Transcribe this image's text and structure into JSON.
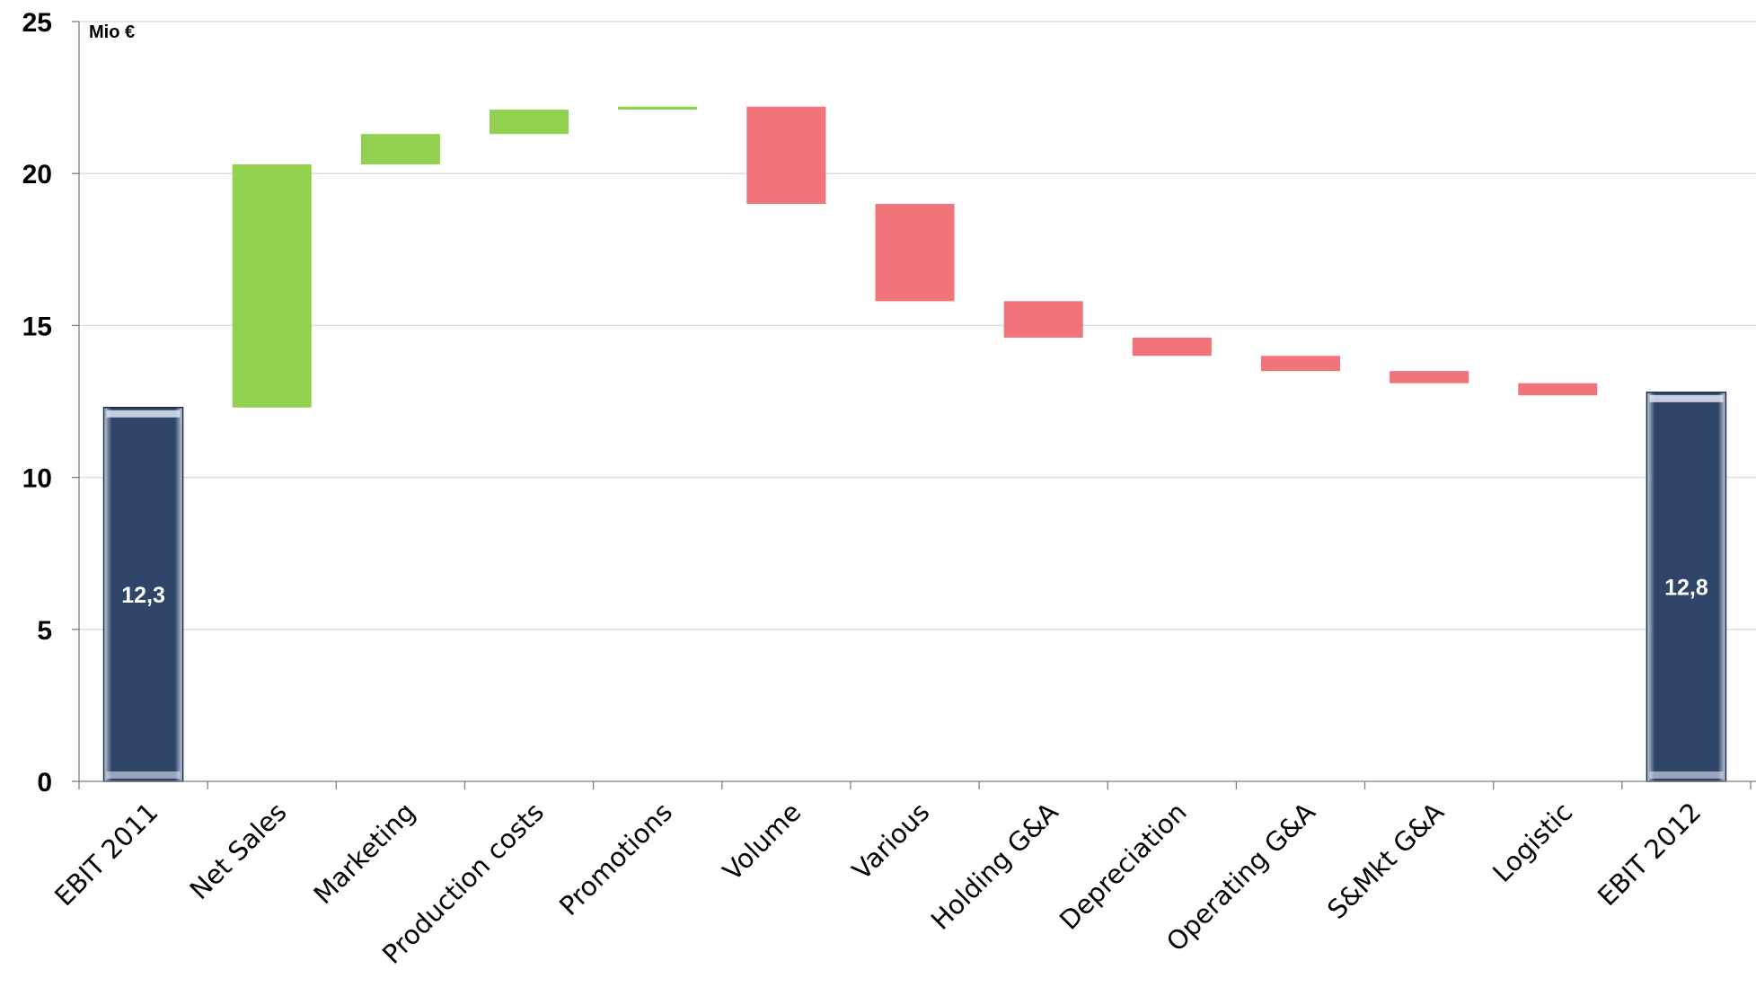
{
  "chart_data": {
    "type": "bar",
    "subtype": "waterfall",
    "unit_label": "Mio €",
    "ylim": [
      0,
      25
    ],
    "yticks": [
      "0",
      "5",
      "10",
      "15",
      "20",
      "25"
    ],
    "grid": true,
    "colors": {
      "total": "#2e4468",
      "increase": "#92d050",
      "decrease": "#f0747a",
      "grid": "#d9d9d9",
      "axis": "#7f7f7f"
    },
    "categories": [
      "EBIT 2011",
      "Net Sales",
      "Marketing",
      "Production costs",
      "Promotions",
      "Volume",
      "Various",
      "Holding G&A",
      "Depreciation",
      "Operating G&A",
      "S&Mkt G&A",
      "Logistic",
      "EBIT 2012"
    ],
    "bars": [
      {
        "kind": "total",
        "start": 0,
        "end": 12.3,
        "label": "12,3"
      },
      {
        "kind": "increase",
        "start": 12.3,
        "end": 20.3
      },
      {
        "kind": "increase",
        "start": 20.3,
        "end": 21.3
      },
      {
        "kind": "increase",
        "start": 21.3,
        "end": 22.1
      },
      {
        "kind": "increase",
        "start": 22.1,
        "end": 22.2
      },
      {
        "kind": "decrease",
        "start": 22.2,
        "end": 19.0
      },
      {
        "kind": "decrease",
        "start": 19.0,
        "end": 15.8
      },
      {
        "kind": "decrease",
        "start": 15.8,
        "end": 14.6
      },
      {
        "kind": "decrease",
        "start": 14.6,
        "end": 14.0
      },
      {
        "kind": "decrease",
        "start": 14.0,
        "end": 13.5
      },
      {
        "kind": "decrease",
        "start": 13.5,
        "end": 13.1
      },
      {
        "kind": "decrease",
        "start": 13.1,
        "end": 12.7
      },
      {
        "kind": "total",
        "start": 0,
        "end": 12.8,
        "label": "12,8"
      }
    ]
  }
}
